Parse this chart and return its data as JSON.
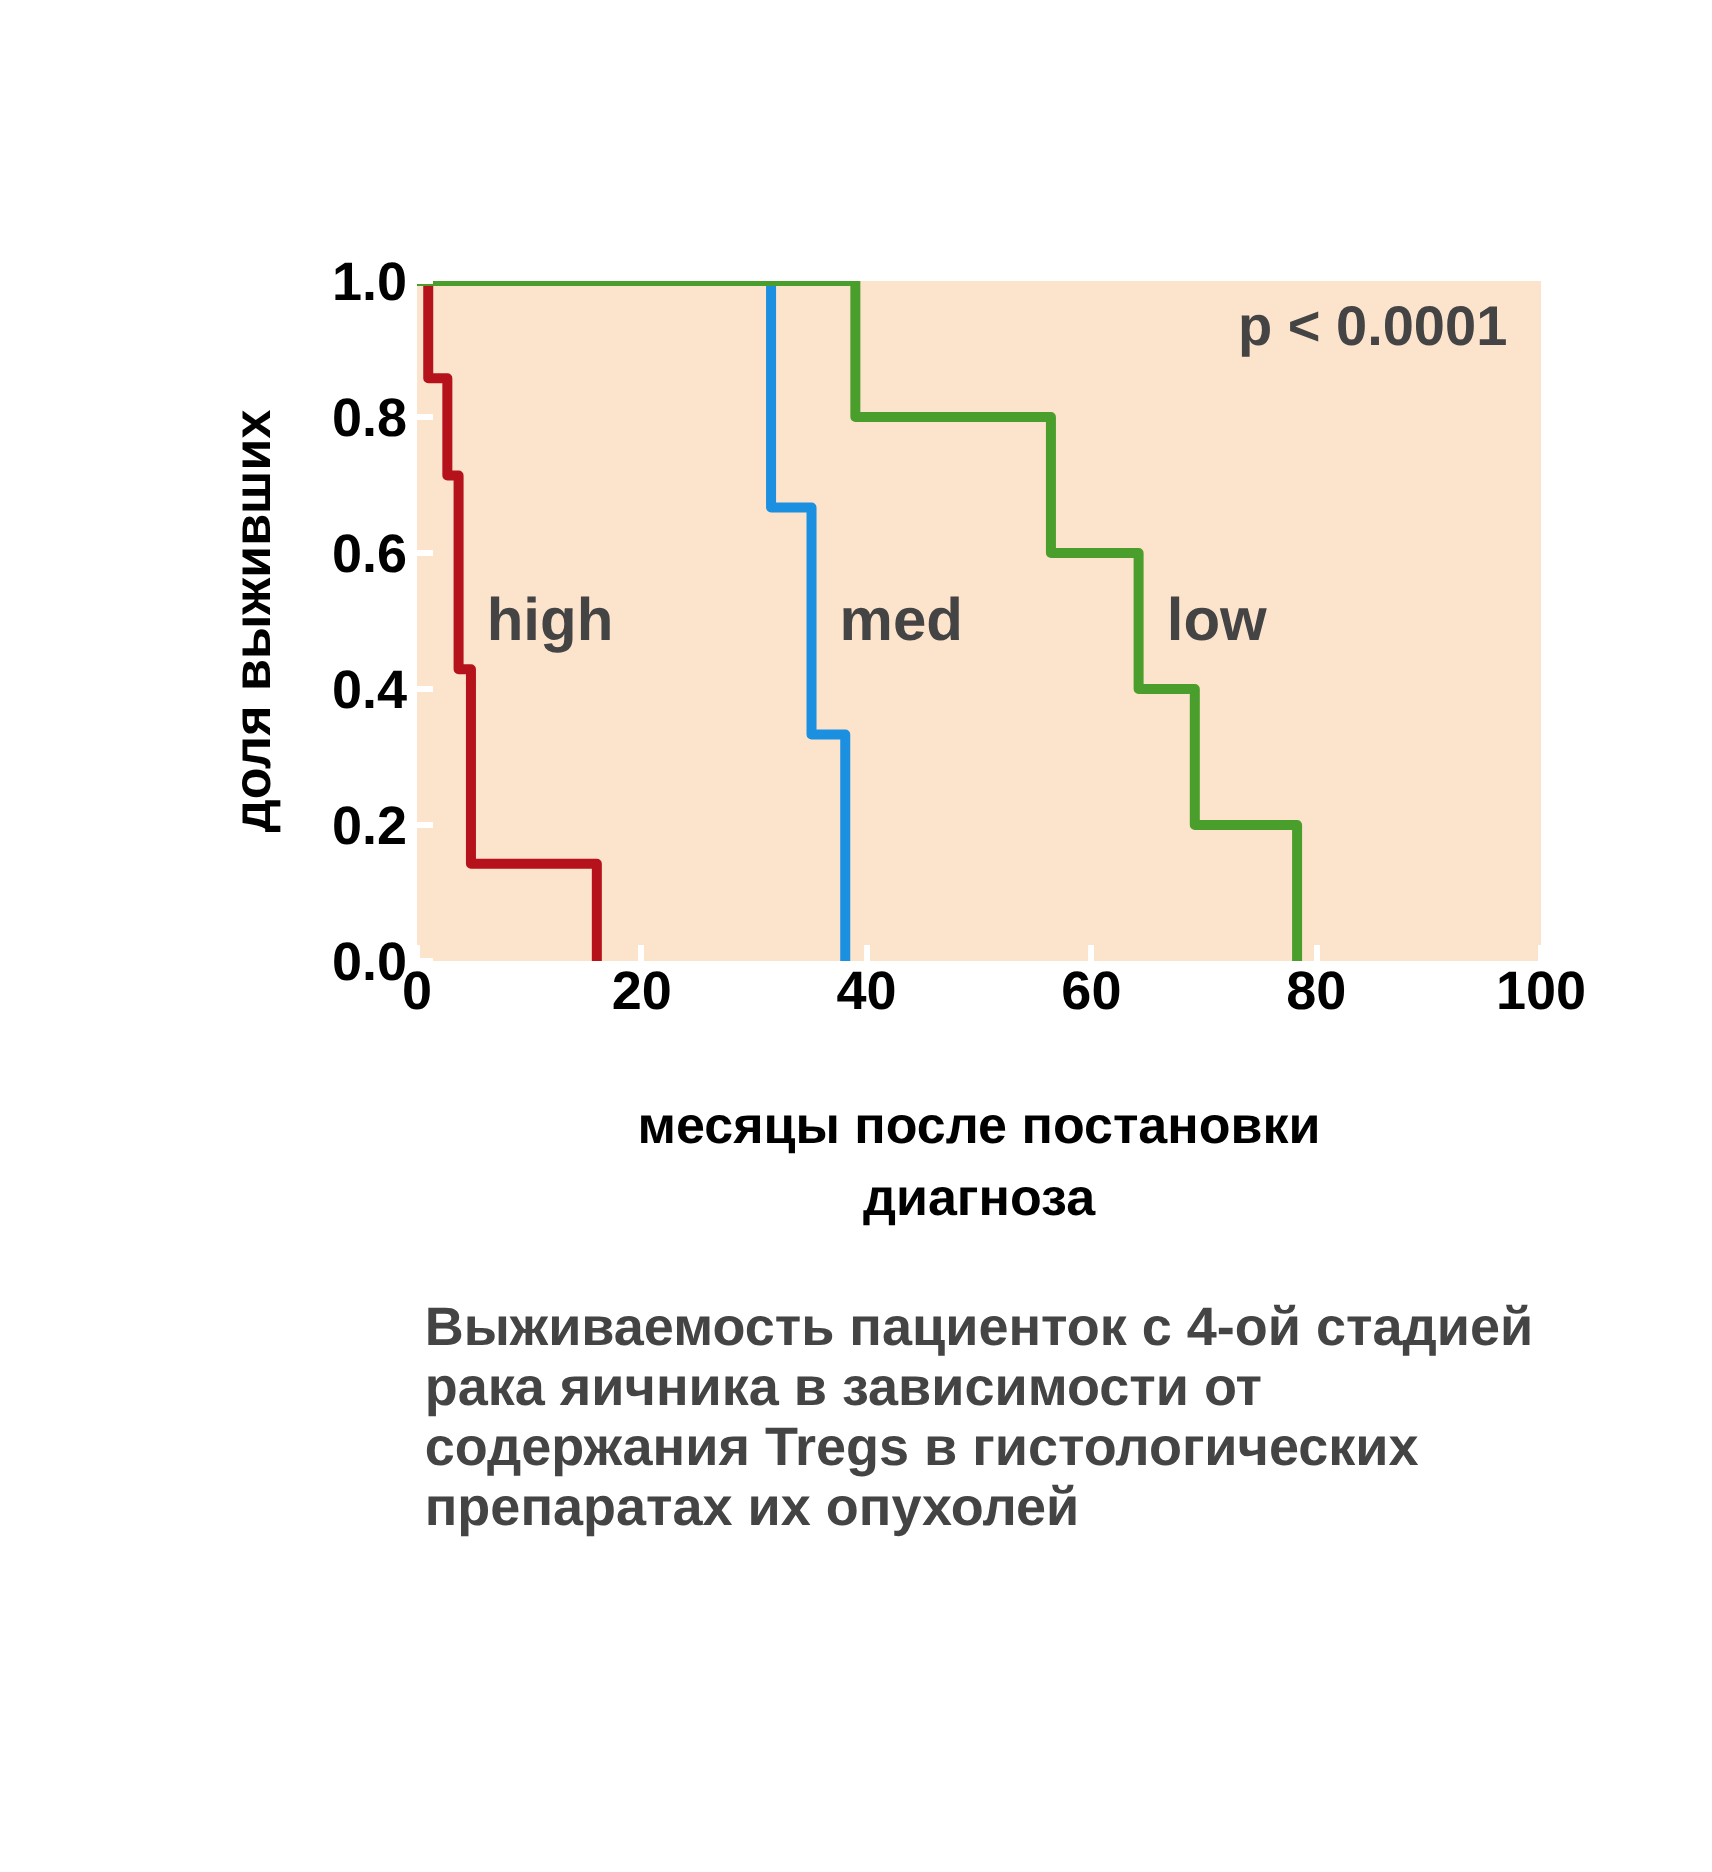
{
  "chart_data": {
    "type": "step",
    "xlabel": "месяцы после постановки\nдиагноза",
    "ylabel": "доля выживших",
    "title": "Выживаемость пациенток с 4-ой стадией\nрака яичника в зависимости от\nсодержания Tregs в гистологических\nпрепаратах их опухолей",
    "annotations": [
      "p < 0.0001"
    ],
    "xlim": [
      0,
      100
    ],
    "xticks": [
      0,
      20,
      40,
      60,
      80,
      100
    ],
    "ylim": [
      0,
      1.0
    ],
    "yticks": [
      {
        "value": 0,
        "label": "0.0"
      },
      {
        "value": 0.2,
        "label": "0.2"
      },
      {
        "value": 0.4,
        "label": "0.4"
      },
      {
        "value": 0.6,
        "label": "0.6"
      },
      {
        "value": 0.8,
        "label": "0.8"
      },
      {
        "value": 1.0,
        "label": "1.0"
      }
    ],
    "grid": false,
    "legend": false,
    "series": [
      {
        "name": "high",
        "color": "#b5121b",
        "x": [
          0,
          1,
          2.7,
          3.7,
          4.8,
          16.0
        ],
        "values": [
          1.0,
          0.857,
          0.714,
          0.429,
          0.143,
          0
        ]
      },
      {
        "name": "med",
        "color": "#1b8fe0",
        "x": [
          0,
          31.5,
          35.1,
          38.1
        ],
        "values": [
          1.0,
          0.667,
          0.333,
          0
        ]
      },
      {
        "name": "low",
        "color": "#4a9e2c",
        "x": [
          0,
          39.0,
          56.4,
          64.2,
          69.2,
          78.3
        ],
        "values": [
          1.0,
          0.8,
          0.6,
          0.4,
          0.2,
          0
        ]
      }
    ]
  }
}
